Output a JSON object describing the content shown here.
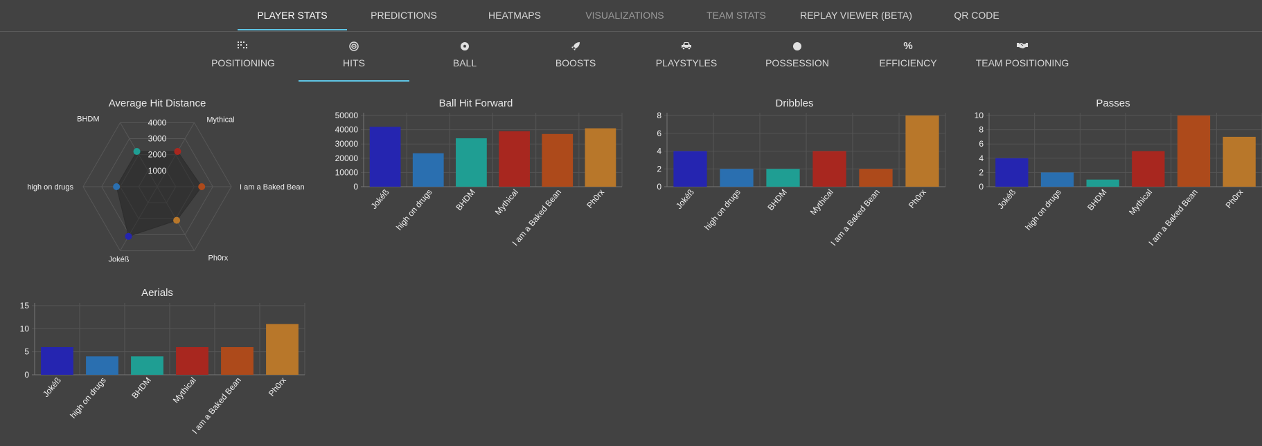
{
  "top_tabs": [
    {
      "label": "PLAYER STATS",
      "state": "active"
    },
    {
      "label": "PREDICTIONS",
      "state": "normal"
    },
    {
      "label": "HEATMAPS",
      "state": "normal"
    },
    {
      "label": "VISUALIZATIONS",
      "state": "dim"
    },
    {
      "label": "TEAM STATS",
      "state": "dim"
    },
    {
      "label": "REPLAY VIEWER (BETA)",
      "state": "normal"
    },
    {
      "label": "QR CODE",
      "state": "normal"
    }
  ],
  "sub_tabs": [
    {
      "label": "POSITIONING",
      "icon": "grid-dots-icon"
    },
    {
      "label": "HITS",
      "icon": "target-icon",
      "active": true
    },
    {
      "label": "BALL",
      "icon": "soccer-ball-icon"
    },
    {
      "label": "BOOSTS",
      "icon": "rocket-icon"
    },
    {
      "label": "PLAYSTYLES",
      "icon": "car-icon"
    },
    {
      "label": "POSSESSION",
      "icon": "circle-icon"
    },
    {
      "label": "EFFICIENCY",
      "icon": "percent-icon"
    },
    {
      "label": "TEAM POSITIONING",
      "icon": "handshake-icon"
    }
  ],
  "players": [
    "Jokéß",
    "high on drugs",
    "BHDM",
    "Mythical",
    "I am a Baked Bean",
    "Ph0rx"
  ],
  "player_colors": [
    "#2525b0",
    "#2a6fb0",
    "#1f9e93",
    "#a8271f",
    "#ad4a1b",
    "#b8772a"
  ],
  "chart_data": [
    {
      "type": "radar",
      "title": "Average Hit Distance",
      "categories": [
        "Mythical",
        "I am a Baked Bean",
        "Ph0rx",
        "Jokéß",
        "high on drugs",
        "BHDM"
      ],
      "values": [
        2200,
        2400,
        2100,
        3100,
        2200,
        2200
      ],
      "ticks": [
        "1000",
        "2000",
        "3000",
        "4000"
      ],
      "rmax": 4000
    },
    {
      "type": "bar",
      "title": "Ball Hit Forward",
      "categories": [
        "Jokéß",
        "high on drugs",
        "BHDM",
        "Mythical",
        "I am a Baked Bean",
        "Ph0rx"
      ],
      "values": [
        42000,
        23500,
        34000,
        39000,
        37000,
        41000
      ],
      "ylim": [
        0,
        50000
      ],
      "yticks": [
        "0",
        "10000",
        "20000",
        "30000",
        "40000",
        "50000"
      ]
    },
    {
      "type": "bar",
      "title": "Dribbles",
      "categories": [
        "Jokéß",
        "high on drugs",
        "BHDM",
        "Mythical",
        "I am a Baked Bean",
        "Ph0rx"
      ],
      "values": [
        4,
        2,
        2,
        4,
        2,
        8
      ],
      "ylim": [
        0,
        8
      ],
      "yticks": [
        "0",
        "2",
        "4",
        "6",
        "8"
      ]
    },
    {
      "type": "bar",
      "title": "Passes",
      "categories": [
        "Jokéß",
        "high on drugs",
        "BHDM",
        "Mythical",
        "I am a Baked Bean",
        "Ph0rx"
      ],
      "values": [
        4,
        2,
        1,
        5,
        10,
        7
      ],
      "ylim": [
        0,
        10
      ],
      "yticks": [
        "0",
        "2",
        "4",
        "6",
        "8",
        "10"
      ]
    },
    {
      "type": "bar",
      "title": "Aerials",
      "categories": [
        "Jokéß",
        "high on drugs",
        "BHDM",
        "Mythical",
        "I am a Baked Bean",
        "Ph0rx"
      ],
      "values": [
        6,
        4,
        4,
        6,
        6,
        11
      ],
      "ylim": [
        0,
        15
      ],
      "yticks": [
        "0",
        "5",
        "10",
        "15"
      ]
    }
  ]
}
